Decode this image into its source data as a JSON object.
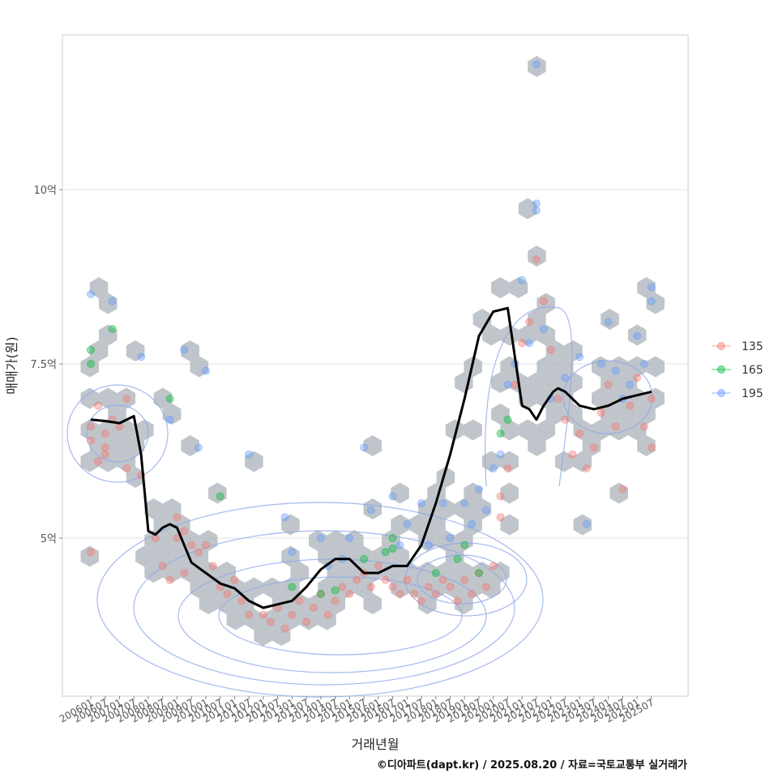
{
  "chart_data": {
    "type": "scatter",
    "xlabel": "거래년월",
    "ylabel": "매매가(원)",
    "caption": "©디아파트(dapt.kr) / 2025.08.20 / 자료=국토교통부 실거래가",
    "x_range": [
      "2006-01",
      "2025-07"
    ],
    "y_range_won": [
      300000000,
      1200000000
    ],
    "y_ticks": [
      {
        "value": 500000000,
        "label": "5억"
      },
      {
        "value": 750000000,
        "label": "7.5억"
      },
      {
        "value": 1000000000,
        "label": "10억"
      }
    ],
    "x_tick_labels": [
      "200601",
      "200607",
      "200701",
      "200707",
      "200801",
      "200807",
      "200901",
      "200907",
      "201001",
      "201007",
      "201101",
      "201107",
      "201201",
      "201207",
      "201301",
      "201307",
      "201401",
      "201407",
      "201501",
      "201507",
      "201601",
      "201607",
      "201701",
      "201707",
      "201801",
      "201807",
      "201901",
      "201907",
      "202001",
      "202007",
      "202101",
      "202107",
      "202201",
      "202207",
      "202301",
      "202307",
      "202401",
      "202407",
      "202501",
      "202507"
    ],
    "grid": true,
    "legend_position": "right",
    "colors": {
      "135": "#f8766d",
      "165": "#00ba38",
      "195": "#619cff",
      "trend": "#000000",
      "hex": "#aab2b8",
      "contour": "#8fa8e8"
    },
    "series": [
      {
        "name": "135",
        "color": "#f8766d"
      },
      {
        "name": "165",
        "color": "#00ba38"
      },
      {
        "name": "195",
        "color": "#619cff"
      }
    ],
    "trend_line": {
      "x": [
        "2006-01",
        "2006-07",
        "2007-01",
        "2007-07",
        "2007-10",
        "2008-01",
        "2008-04",
        "2008-07",
        "2008-10",
        "2009-01",
        "2009-07",
        "2010-01",
        "2010-07",
        "2011-01",
        "2011-07",
        "2012-01",
        "2012-07",
        "2013-01",
        "2013-07",
        "2014-01",
        "2014-07",
        "2015-01",
        "2015-07",
        "2016-01",
        "2016-07",
        "2017-01",
        "2017-07",
        "2018-01",
        "2018-07",
        "2019-01",
        "2019-07",
        "2020-01",
        "2020-07",
        "2021-01",
        "2021-04",
        "2021-07",
        "2021-10",
        "2022-01",
        "2022-02",
        "2022-04",
        "2022-07",
        "2023-01",
        "2023-07",
        "2024-01",
        "2024-07",
        "2025-01",
        "2025-07"
      ],
      "y_eok": [
        6.7,
        6.68,
        6.65,
        6.75,
        6.2,
        5.1,
        5.05,
        5.15,
        5.2,
        5.15,
        4.65,
        4.5,
        4.35,
        4.28,
        4.1,
        4.0,
        4.05,
        4.1,
        4.3,
        4.55,
        4.7,
        4.7,
        4.5,
        4.5,
        4.6,
        4.6,
        4.9,
        5.5,
        6.2,
        7.0,
        7.9,
        8.25,
        8.3,
        6.9,
        6.85,
        6.7,
        6.9,
        7.05,
        7.1,
        7.15,
        7.1,
        6.9,
        6.85,
        6.9,
        7.0,
        7.05,
        7.1
      ]
    },
    "points": {
      "135": [
        [
          "2006-01",
          6.6
        ],
        [
          "2006-01",
          6.4
        ],
        [
          "2006-01",
          4.8
        ],
        [
          "2006-04",
          6.9
        ],
        [
          "2006-04",
          6.1
        ],
        [
          "2006-07",
          6.3
        ],
        [
          "2006-07",
          6.5
        ],
        [
          "2006-07",
          6.2
        ],
        [
          "2006-10",
          6.7
        ],
        [
          "2007-01",
          6.6
        ],
        [
          "2007-04",
          6.0
        ],
        [
          "2007-04",
          7.0
        ],
        [
          "2007-10",
          5.9
        ],
        [
          "2008-04",
          5.0
        ],
        [
          "2008-07",
          4.6
        ],
        [
          "2008-10",
          4.4
        ],
        [
          "2009-01",
          5.0
        ],
        [
          "2009-01",
          5.3
        ],
        [
          "2009-04",
          5.1
        ],
        [
          "2009-04",
          4.5
        ],
        [
          "2009-07",
          4.9
        ],
        [
          "2009-10",
          4.8
        ],
        [
          "2010-01",
          4.9
        ],
        [
          "2010-04",
          4.6
        ],
        [
          "2010-07",
          4.3
        ],
        [
          "2010-10",
          4.2
        ],
        [
          "2011-01",
          4.4
        ],
        [
          "2011-04",
          4.1
        ],
        [
          "2011-07",
          3.9
        ],
        [
          "2012-01",
          3.9
        ],
        [
          "2012-04",
          3.8
        ],
        [
          "2012-07",
          4.0
        ],
        [
          "2012-10",
          3.7
        ],
        [
          "2013-01",
          3.9
        ],
        [
          "2013-04",
          4.1
        ],
        [
          "2013-07",
          3.8
        ],
        [
          "2013-10",
          4.0
        ],
        [
          "2014-01",
          4.2
        ],
        [
          "2014-04",
          3.9
        ],
        [
          "2014-07",
          4.1
        ],
        [
          "2014-10",
          4.3
        ],
        [
          "2015-01",
          4.2
        ],
        [
          "2015-04",
          4.4
        ],
        [
          "2015-07",
          4.5
        ],
        [
          "2015-10",
          4.3
        ],
        [
          "2016-01",
          4.6
        ],
        [
          "2016-04",
          4.4
        ],
        [
          "2016-07",
          4.3
        ],
        [
          "2016-10",
          4.2
        ],
        [
          "2017-01",
          4.4
        ],
        [
          "2017-04",
          4.2
        ],
        [
          "2017-07",
          4.1
        ],
        [
          "2017-10",
          4.3
        ],
        [
          "2018-01",
          4.2
        ],
        [
          "2018-04",
          4.4
        ],
        [
          "2018-07",
          4.3
        ],
        [
          "2018-10",
          4.1
        ],
        [
          "2019-01",
          4.4
        ],
        [
          "2019-04",
          4.2
        ],
        [
          "2019-07",
          4.5
        ],
        [
          "2019-10",
          4.3
        ],
        [
          "2020-01",
          4.6
        ],
        [
          "2020-04",
          5.3
        ],
        [
          "2020-04",
          5.6
        ],
        [
          "2020-07",
          6.0
        ],
        [
          "2020-10",
          7.2
        ],
        [
          "2021-01",
          7.8
        ],
        [
          "2021-04",
          8.1
        ],
        [
          "2021-07",
          9.0
        ],
        [
          "2021-10",
          8.4
        ],
        [
          "2022-01",
          7.7
        ],
        [
          "2022-04",
          7.0
        ],
        [
          "2022-07",
          6.7
        ],
        [
          "2022-10",
          6.2
        ],
        [
          "2023-01",
          6.5
        ],
        [
          "2023-04",
          6.0
        ],
        [
          "2023-07",
          6.3
        ],
        [
          "2023-10",
          6.8
        ],
        [
          "2024-01",
          7.2
        ],
        [
          "2024-04",
          6.6
        ],
        [
          "2024-07",
          5.7
        ],
        [
          "2024-10",
          6.9
        ],
        [
          "2025-01",
          7.3
        ],
        [
          "2025-04",
          6.6
        ],
        [
          "2025-07",
          7.0
        ],
        [
          "2025-07",
          6.3
        ]
      ],
      "165": [
        [
          "2006-01",
          7.7
        ],
        [
          "2006-01",
          7.5
        ],
        [
          "2006-10",
          8.0
        ],
        [
          "2008-10",
          7.0
        ],
        [
          "2010-07",
          5.6
        ],
        [
          "2013-01",
          4.3
        ],
        [
          "2014-01",
          4.2
        ],
        [
          "2014-07",
          4.25
        ],
        [
          "2015-07",
          4.7
        ],
        [
          "2016-04",
          4.8
        ],
        [
          "2016-07",
          5.0
        ],
        [
          "2016-07",
          4.85
        ],
        [
          "2018-01",
          4.5
        ],
        [
          "2018-10",
          4.7
        ],
        [
          "2019-01",
          4.9
        ],
        [
          "2019-07",
          4.5
        ],
        [
          "2020-04",
          6.5
        ],
        [
          "2020-07",
          6.7
        ]
      ],
      "195": [
        [
          "2006-01",
          8.5
        ],
        [
          "2006-10",
          8.4
        ],
        [
          "2007-10",
          7.6
        ],
        [
          "2008-10",
          6.7
        ],
        [
          "2009-04",
          7.7
        ],
        [
          "2009-10",
          6.3
        ],
        [
          "2010-01",
          7.4
        ],
        [
          "2011-07",
          6.2
        ],
        [
          "2012-10",
          5.3
        ],
        [
          "2013-01",
          4.8
        ],
        [
          "2014-01",
          5.0
        ],
        [
          "2014-04",
          4.6
        ],
        [
          "2014-10",
          4.7
        ],
        [
          "2015-01",
          5.0
        ],
        [
          "2015-07",
          6.3
        ],
        [
          "2015-10",
          5.4
        ],
        [
          "2016-07",
          5.6
        ],
        [
          "2016-10",
          4.9
        ],
        [
          "2017-01",
          5.2
        ],
        [
          "2017-07",
          5.5
        ],
        [
          "2017-10",
          4.9
        ],
        [
          "2018-04",
          5.5
        ],
        [
          "2018-07",
          5.0
        ],
        [
          "2019-01",
          5.5
        ],
        [
          "2019-04",
          5.2
        ],
        [
          "2019-07",
          5.7
        ],
        [
          "2019-10",
          5.4
        ],
        [
          "2020-01",
          6.0
        ],
        [
          "2020-04",
          6.2
        ],
        [
          "2020-07",
          7.2
        ],
        [
          "2020-10",
          7.5
        ],
        [
          "2021-01",
          8.7
        ],
        [
          "2021-04",
          7.8
        ],
        [
          "2021-07",
          11.8
        ],
        [
          "2021-07",
          9.7
        ],
        [
          "2021-07",
          9.8
        ],
        [
          "2021-10",
          8.0
        ],
        [
          "2022-01",
          7.0
        ],
        [
          "2022-07",
          7.3
        ],
        [
          "2023-01",
          7.6
        ],
        [
          "2023-04",
          5.2
        ],
        [
          "2023-10",
          7.5
        ],
        [
          "2024-01",
          8.1
        ],
        [
          "2024-04",
          7.4
        ],
        [
          "2024-07",
          7.0
        ],
        [
          "2024-10",
          7.2
        ],
        [
          "2025-01",
          7.9
        ],
        [
          "2025-04",
          7.5
        ],
        [
          "2025-07",
          8.6
        ],
        [
          "2025-07",
          8.4
        ]
      ]
    }
  }
}
